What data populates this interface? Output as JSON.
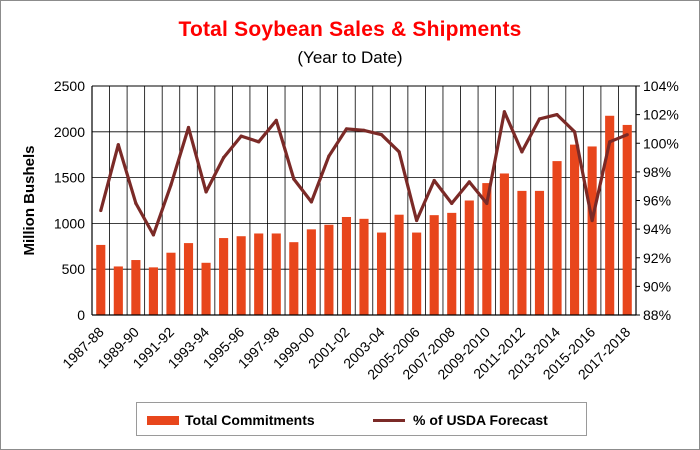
{
  "chart_data": {
    "type": "bar",
    "title": "Total Soybean Sales & Shipments",
    "subtitle": "(Year to Date)",
    "ylabel": "Million Bushels",
    "ylim": [
      0,
      2500
    ],
    "y_ticks": [
      "0",
      "500",
      "1000",
      "1500",
      "2000",
      "2500"
    ],
    "y2lim": [
      88,
      104
    ],
    "y2_ticks": [
      "88%",
      "90%",
      "92%",
      "94%",
      "96%",
      "98%",
      "100%",
      "102%",
      "104%"
    ],
    "grid": true,
    "legend_position": "bottom",
    "categories": [
      "1987-88",
      "1988-89",
      "1989-90",
      "1990-91",
      "1991-92",
      "1992-93",
      "1993-94",
      "1994-95",
      "1995-96",
      "1996-97",
      "1997-98",
      "1998-99",
      "1999-00",
      "2000-01",
      "2001-02",
      "2002-03",
      "2003-04",
      "2004-05",
      "2005-2006",
      "2006-2007",
      "2007-2008",
      "2008-2009",
      "2009-2010",
      "2010-2011",
      "2011-2012",
      "2012-2013",
      "2013-2014",
      "2014-2015",
      "2015-2016",
      "2016-2017",
      "2017-2018"
    ],
    "category_labels_shown": [
      "1987-88",
      "1989-90",
      "1991-92",
      "1993-94",
      "1995-96",
      "1997-98",
      "1999-00",
      "2001-02",
      "2003-04",
      "2005-2006",
      "2007-2008",
      "2009-2010",
      "2011-2012",
      "2013-2014",
      "2015-2016",
      "2017-2018"
    ],
    "series": [
      {
        "name": "Total Commitments",
        "type": "bar",
        "axis": "left",
        "color": "#e8461c",
        "values": [
          765,
          530,
          600,
          520,
          680,
          785,
          570,
          840,
          860,
          890,
          890,
          795,
          935,
          985,
          1070,
          1050,
          900,
          1095,
          900,
          1090,
          1115,
          1250,
          1440,
          1545,
          1355,
          1355,
          1680,
          1860,
          1840,
          2175,
          2075
        ]
      },
      {
        "name": "% of USDA Forecast",
        "type": "line",
        "axis": "right",
        "color": "#7b2a27",
        "values": [
          95.3,
          99.9,
          95.8,
          93.6,
          97.1,
          101.1,
          96.6,
          99.0,
          100.5,
          100.1,
          101.6,
          97.5,
          95.9,
          99.1,
          101.0,
          100.9,
          100.6,
          99.4,
          94.6,
          97.4,
          95.8,
          97.3,
          95.8,
          102.2,
          99.4,
          101.7,
          102.0,
          100.8,
          94.6,
          100.1,
          100.6
        ]
      }
    ]
  }
}
